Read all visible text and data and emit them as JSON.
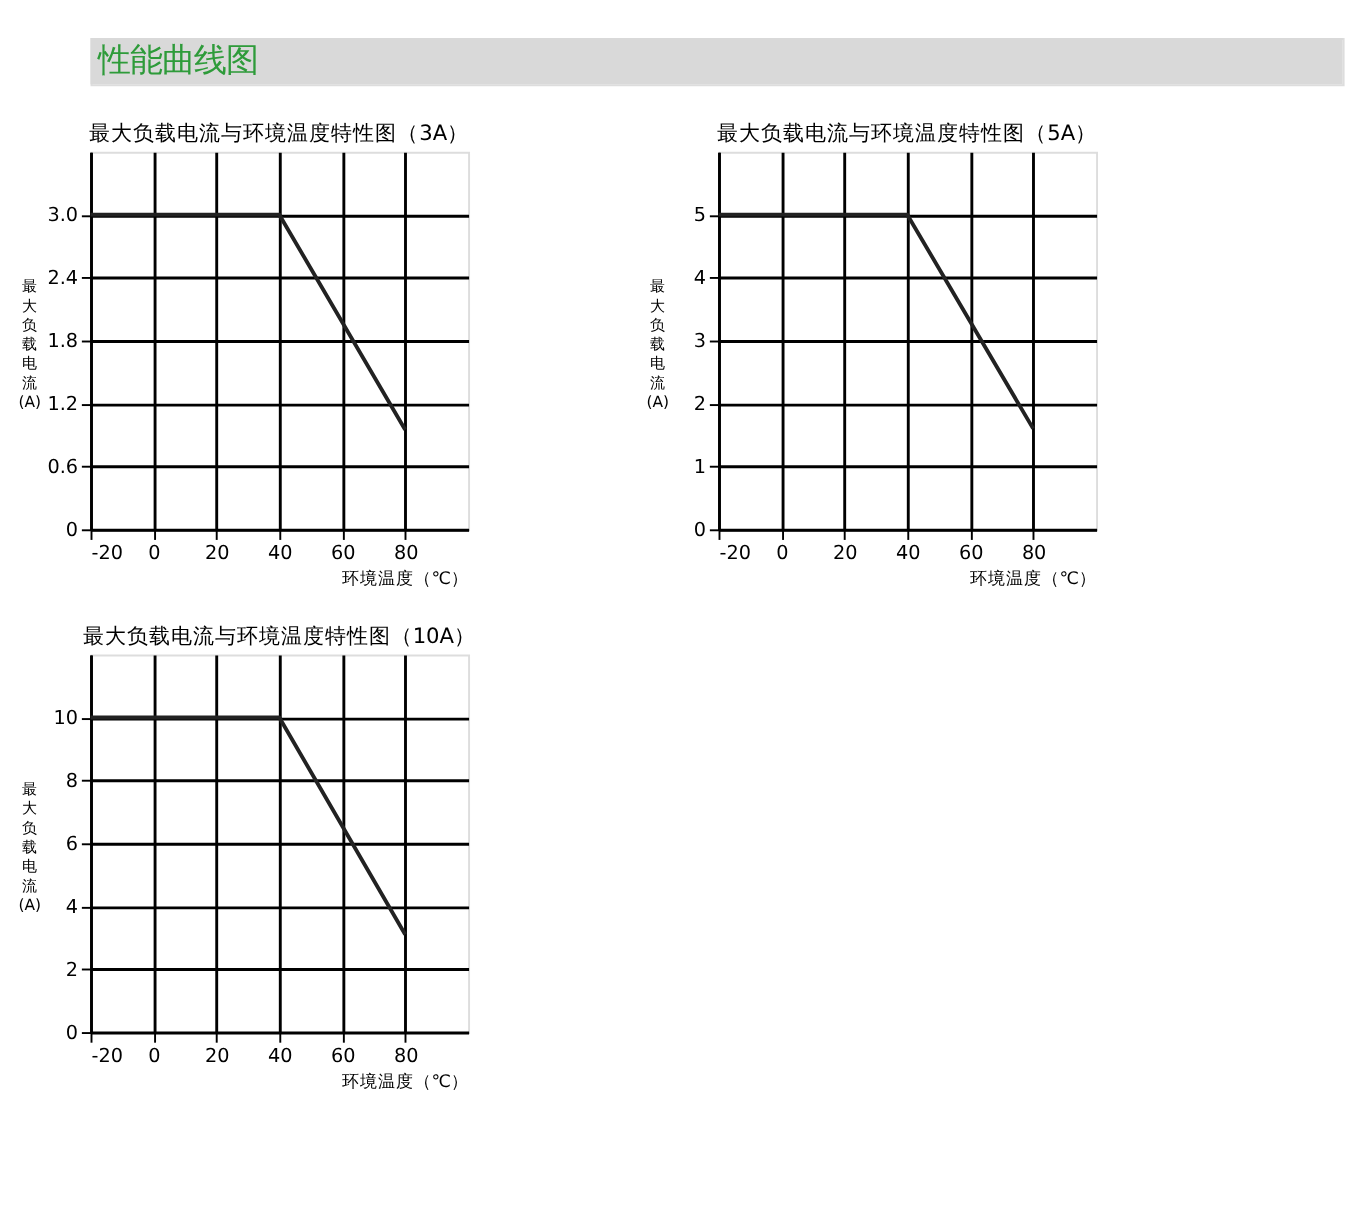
{
  "chart_data": [
    {
      "type": "other",
      "title": "性能曲线图"
    },
    {
      "type": "line",
      "title": "最大负载电流与环境温度特性图（3A）",
      "xlabel": "环境温度（℃）",
      "ylabel": "最大负载电流(A)",
      "x": [
        -20,
        40,
        80
      ],
      "series": [
        {
          "color": "#222222",
          "values": [
            3.0,
            3.0,
            0.95
          ]
        }
      ],
      "xlim": [
        -20,
        100
      ],
      "xticks": [
        -20,
        0,
        20,
        40,
        60,
        80
      ],
      "ylim": [
        0,
        3.6
      ],
      "yticks": [
        0,
        0.6,
        1.2,
        1.8,
        2.4,
        {
          "value": 3.0,
          "label": "3.0"
        }
      ],
      "grid": true,
      "marker": "none",
      "line_style": "solid"
    },
    {
      "type": "line",
      "title": "最大负载电流与环境温度特性图（5A）",
      "xlabel": "环境温度（℃）",
      "ylabel": "最大负载电流(A)",
      "x": [
        -20,
        40,
        80
      ],
      "series": [
        {
          "color": "#222222",
          "values": [
            5,
            5,
            1.6
          ]
        }
      ],
      "xlim": [
        -20,
        100
      ],
      "xticks": [
        -20,
        0,
        20,
        40,
        60,
        80
      ],
      "ylim": [
        0,
        6
      ],
      "yticks": [
        0,
        1,
        2,
        3,
        4,
        5
      ],
      "grid": true,
      "marker": "none",
      "line_style": "solid"
    },
    {
      "type": "line",
      "title": "最大负载电流与环境温度特性图（10A）",
      "xlabel": "环境温度（℃）",
      "ylabel": "最大负载电流(A)",
      "x": [
        -20,
        40,
        80
      ],
      "series": [
        {
          "color": "#222222",
          "values": [
            10,
            10,
            3.1
          ]
        }
      ],
      "xlim": [
        -20,
        100
      ],
      "xticks": [
        -20,
        0,
        20,
        40,
        60,
        80
      ],
      "ylim": [
        0,
        12
      ],
      "yticks": [
        0,
        2,
        4,
        6,
        8,
        10
      ],
      "grid": true,
      "marker": "none",
      "line_style": "solid"
    }
  ]
}
